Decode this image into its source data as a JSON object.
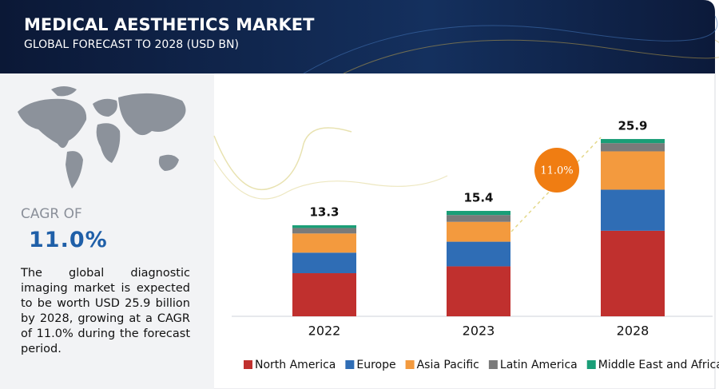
{
  "header": {
    "title": "MEDICAL AESTHETICS MARKET",
    "subtitle": "GLOBAL FORECAST TO 2028 (USD BN)"
  },
  "summary": {
    "cagr_label": "CAGR OF",
    "cagr_value": "11.0%",
    "text": "The global diagnostic imaging market is expected to be worth USD 25.9 billion by 2028, growing at a CAGR of 11.0% during the forecast period."
  },
  "chart_data": {
    "type": "stacked_bar",
    "categories": [
      "2022",
      "2023",
      "2028"
    ],
    "series": [
      {
        "name": "North America",
        "color": "#c0302e",
        "values": [
          6.3,
          7.3,
          12.5
        ]
      },
      {
        "name": "Europe",
        "color": "#2f6db5",
        "values": [
          3.0,
          3.6,
          6.0
        ]
      },
      {
        "name": "Asia Pacific",
        "color": "#f39a3e",
        "values": [
          2.8,
          2.9,
          5.6
        ]
      },
      {
        "name": "Latin America",
        "color": "#7a7a7a",
        "values": [
          0.8,
          1.0,
          1.2
        ]
      },
      {
        "name": "Middle East and Africa",
        "color": "#1a9e77",
        "values": [
          0.4,
          0.6,
          0.6
        ]
      }
    ],
    "totals": [
      13.3,
      15.4,
      25.9
    ],
    "annotation": "11.0%",
    "annotation_color": "#f07d12"
  }
}
